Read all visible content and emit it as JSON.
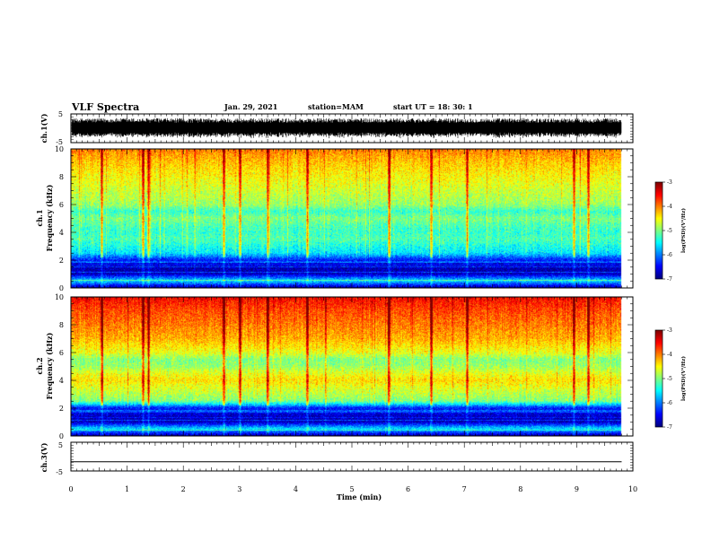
{
  "header": {
    "title": "VLF Spectra",
    "date": "Jan. 29, 2021",
    "station": "station=MAM",
    "start": "start  UT =   18: 30: 1"
  },
  "chart_data": [
    {
      "type": "line",
      "panel": "ch1-waveform",
      "ylabel": "ch.1(V)",
      "ylim": [
        -5,
        5
      ],
      "yticks": [
        -5,
        5
      ],
      "xlim": [
        0,
        10
      ],
      "data_end_min": 9.8,
      "description_values": {
        "amplitude_range_V": [
          -3.5,
          3.5
        ]
      },
      "line_color": "#000000"
    },
    {
      "type": "heatmap",
      "panel": "ch1-spectrogram",
      "ylabel": "ch.1\nFrequency (kHz)",
      "ylabel_line1": "ch.1",
      "ylabel_line2": "Frequency (kHz)",
      "xlim": [
        0,
        10
      ],
      "ylim": [
        0,
        10
      ],
      "yticks": [
        0,
        2,
        4,
        6,
        8,
        10
      ],
      "data_end_min": 9.8,
      "colorbar": {
        "label": "log(PSD)(V²/Hz)",
        "range": [
          -7,
          -3
        ],
        "ticks": [
          -3,
          -4,
          -5,
          -6,
          -7
        ]
      },
      "profile_freq_khz": [
        0,
        0.5,
        1,
        1.5,
        2,
        2.5,
        3,
        3.5,
        4,
        4.5,
        5,
        5.5,
        6,
        7,
        8,
        9,
        10
      ],
      "profile_log_psd": [
        -6.8,
        -5.6,
        -6.8,
        -6.8,
        -6.4,
        -5.6,
        -5.4,
        -5.2,
        -5.3,
        -5.2,
        -5.0,
        -5.3,
        -4.9,
        -4.7,
        -4.5,
        -4.3,
        -4.0
      ],
      "vertical_spikes_min": [
        0.55,
        1.27,
        1.38,
        2.72,
        3.0,
        3.5,
        4.2,
        5.65,
        6.4,
        7.05,
        8.95,
        9.2
      ]
    },
    {
      "type": "heatmap",
      "panel": "ch2-spectrogram",
      "ylabel": "ch.2\nFrequency (kHz)",
      "ylabel_line1": "ch.2",
      "ylabel_line2": "Frequency (kHz)",
      "xlim": [
        0,
        10
      ],
      "ylim": [
        0,
        10
      ],
      "yticks": [
        0,
        2,
        4,
        6,
        8,
        10
      ],
      "data_end_min": 9.8,
      "colorbar": {
        "label": "log(PSD)(V²/Hz)",
        "range": [
          -7,
          -3
        ],
        "ticks": [
          -3,
          -4,
          -5,
          -6,
          -7
        ]
      },
      "profile_freq_khz": [
        0,
        0.5,
        1,
        1.5,
        2,
        2.5,
        3,
        3.5,
        4,
        4.5,
        5,
        5.5,
        6,
        7,
        8,
        9,
        10
      ],
      "profile_log_psd": [
        -6.8,
        -5.6,
        -6.8,
        -6.7,
        -6.4,
        -5.0,
        -4.8,
        -4.6,
        -4.4,
        -4.6,
        -4.9,
        -5.0,
        -4.6,
        -4.2,
        -4.0,
        -3.8,
        -3.5
      ],
      "vertical_spikes_min": [
        0.55,
        1.27,
        1.38,
        2.72,
        3.0,
        3.5,
        4.2,
        5.65,
        6.4,
        7.05,
        8.95,
        9.2
      ]
    },
    {
      "type": "line",
      "panel": "ch3-waveform",
      "ylabel": "ch.3(V)",
      "ylim": [
        -5,
        5
      ],
      "yticks": [
        -5,
        5
      ],
      "xlim": [
        0,
        10
      ],
      "constant_value_V": -1.8,
      "xlabel": "Time (min)",
      "xticks": [
        0,
        1,
        2,
        3,
        4,
        5,
        6,
        7,
        8,
        9,
        10
      ]
    }
  ]
}
